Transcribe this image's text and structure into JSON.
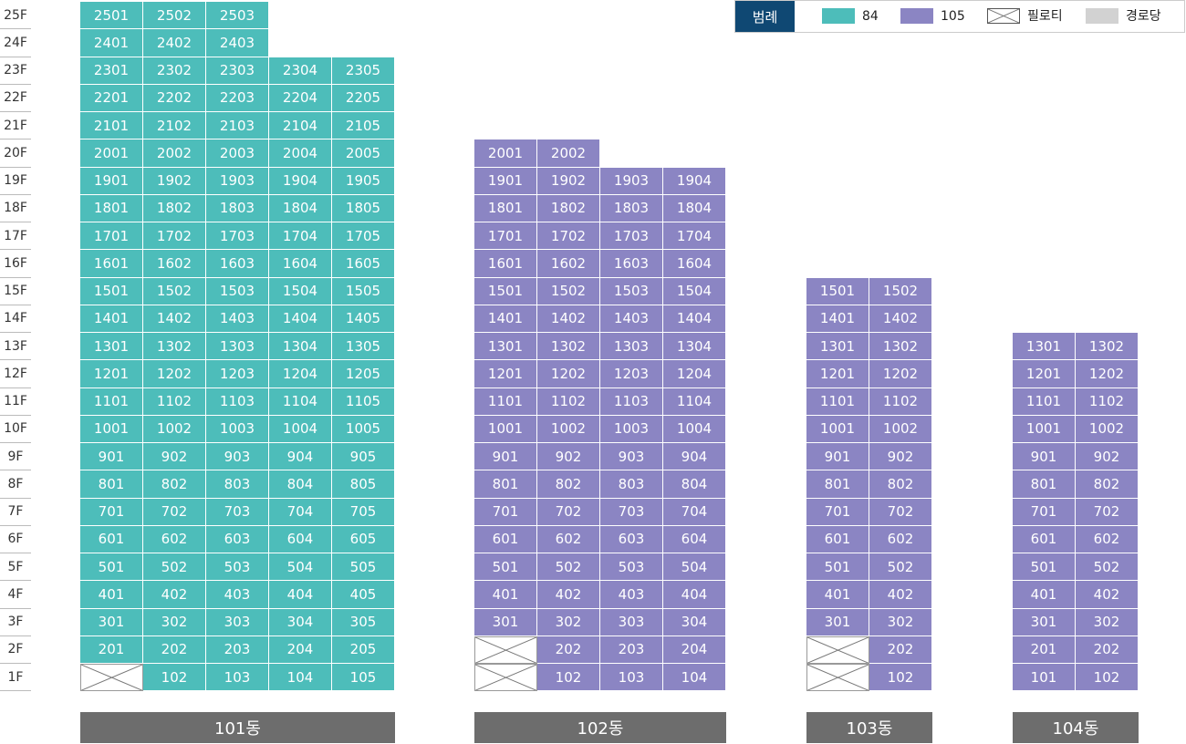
{
  "floor_labels": [
    "1F",
    "2F",
    "3F",
    "4F",
    "5F",
    "6F",
    "7F",
    "8F",
    "9F",
    "10F",
    "11F",
    "12F",
    "13F",
    "14F",
    "15F",
    "16F",
    "17F",
    "18F",
    "19F",
    "20F",
    "21F",
    "22F",
    "23F",
    "24F",
    "25F"
  ],
  "legend": {
    "title": "범례",
    "items": [
      {
        "label": "84",
        "color": "#4dbdba"
      },
      {
        "label": "105",
        "color": "#8b85c3"
      },
      {
        "label": "필로티"
      },
      {
        "label": "경로당",
        "color": "#d2d2d2"
      }
    ]
  },
  "buildings": [
    {
      "name": "101동",
      "color": "#4dbdba",
      "floors": [
        [
          null,
          "102",
          "103",
          "104",
          "105"
        ],
        [
          "201",
          "202",
          "203",
          "204",
          "205"
        ],
        [
          "301",
          "302",
          "303",
          "304",
          "305"
        ],
        [
          "401",
          "402",
          "403",
          "404",
          "405"
        ],
        [
          "501",
          "502",
          "503",
          "504",
          "505"
        ],
        [
          "601",
          "602",
          "603",
          "604",
          "605"
        ],
        [
          "701",
          "702",
          "703",
          "704",
          "705"
        ],
        [
          "801",
          "802",
          "803",
          "804",
          "805"
        ],
        [
          "901",
          "902",
          "903",
          "904",
          "905"
        ],
        [
          "1001",
          "1002",
          "1003",
          "1004",
          "1005"
        ],
        [
          "1101",
          "1102",
          "1103",
          "1104",
          "1105"
        ],
        [
          "1201",
          "1202",
          "1203",
          "1204",
          "1205"
        ],
        [
          "1301",
          "1302",
          "1303",
          "1304",
          "1305"
        ],
        [
          "1401",
          "1402",
          "1403",
          "1404",
          "1405"
        ],
        [
          "1501",
          "1502",
          "1503",
          "1504",
          "1505"
        ],
        [
          "1601",
          "1602",
          "1603",
          "1604",
          "1605"
        ],
        [
          "1701",
          "1702",
          "1703",
          "1704",
          "1705"
        ],
        [
          "1801",
          "1802",
          "1803",
          "1804",
          "1805"
        ],
        [
          "1901",
          "1902",
          "1903",
          "1904",
          "1905"
        ],
        [
          "2001",
          "2002",
          "2003",
          "2004",
          "2005"
        ],
        [
          "2101",
          "2102",
          "2103",
          "2104",
          "2105"
        ],
        [
          "2201",
          "2202",
          "2203",
          "2204",
          "2205"
        ],
        [
          "2301",
          "2302",
          "2303",
          "2304",
          "2305"
        ],
        [
          "2401",
          "2402",
          "2403"
        ],
        [
          "2501",
          "2502",
          "2503"
        ]
      ]
    },
    {
      "name": "102동",
      "color": "#8b85c3",
      "floors": [
        [
          null,
          "102",
          "103",
          "104"
        ],
        [
          null,
          "202",
          "203",
          "204"
        ],
        [
          "301",
          "302",
          "303",
          "304"
        ],
        [
          "401",
          "402",
          "403",
          "404"
        ],
        [
          "501",
          "502",
          "503",
          "504"
        ],
        [
          "601",
          "602",
          "603",
          "604"
        ],
        [
          "701",
          "702",
          "703",
          "704"
        ],
        [
          "801",
          "802",
          "803",
          "804"
        ],
        [
          "901",
          "902",
          "903",
          "904"
        ],
        [
          "1001",
          "1002",
          "1003",
          "1004"
        ],
        [
          "1101",
          "1102",
          "1103",
          "1104"
        ],
        [
          "1201",
          "1202",
          "1203",
          "1204"
        ],
        [
          "1301",
          "1302",
          "1303",
          "1304"
        ],
        [
          "1401",
          "1402",
          "1403",
          "1404"
        ],
        [
          "1501",
          "1502",
          "1503",
          "1504"
        ],
        [
          "1601",
          "1602",
          "1603",
          "1604"
        ],
        [
          "1701",
          "1702",
          "1703",
          "1704"
        ],
        [
          "1801",
          "1802",
          "1803",
          "1804"
        ],
        [
          "1901",
          "1902",
          "1903",
          "1904"
        ],
        [
          "2001",
          "2002"
        ]
      ]
    },
    {
      "name": "103동",
      "color": "#8b85c3",
      "floors": [
        [
          null,
          "102"
        ],
        [
          null,
          "202"
        ],
        [
          "301",
          "302"
        ],
        [
          "401",
          "402"
        ],
        [
          "501",
          "502"
        ],
        [
          "601",
          "602"
        ],
        [
          "701",
          "702"
        ],
        [
          "801",
          "802"
        ],
        [
          "901",
          "902"
        ],
        [
          "1001",
          "1002"
        ],
        [
          "1101",
          "1102"
        ],
        [
          "1201",
          "1202"
        ],
        [
          "1301",
          "1302"
        ],
        [
          "1401",
          "1402"
        ],
        [
          "1501",
          "1502"
        ]
      ]
    },
    {
      "name": "104동",
      "color": "#8b85c3",
      "floors": [
        [
          "101",
          "102"
        ],
        [
          "201",
          "202"
        ],
        [
          "301",
          "302"
        ],
        [
          "401",
          "402"
        ],
        [
          "501",
          "502"
        ],
        [
          "601",
          "602"
        ],
        [
          "701",
          "702"
        ],
        [
          "801",
          "802"
        ],
        [
          "901",
          "902"
        ],
        [
          "1001",
          "1002"
        ],
        [
          "1101",
          "1102"
        ],
        [
          "1201",
          "1202"
        ],
        [
          "1301",
          "1302"
        ]
      ]
    }
  ]
}
